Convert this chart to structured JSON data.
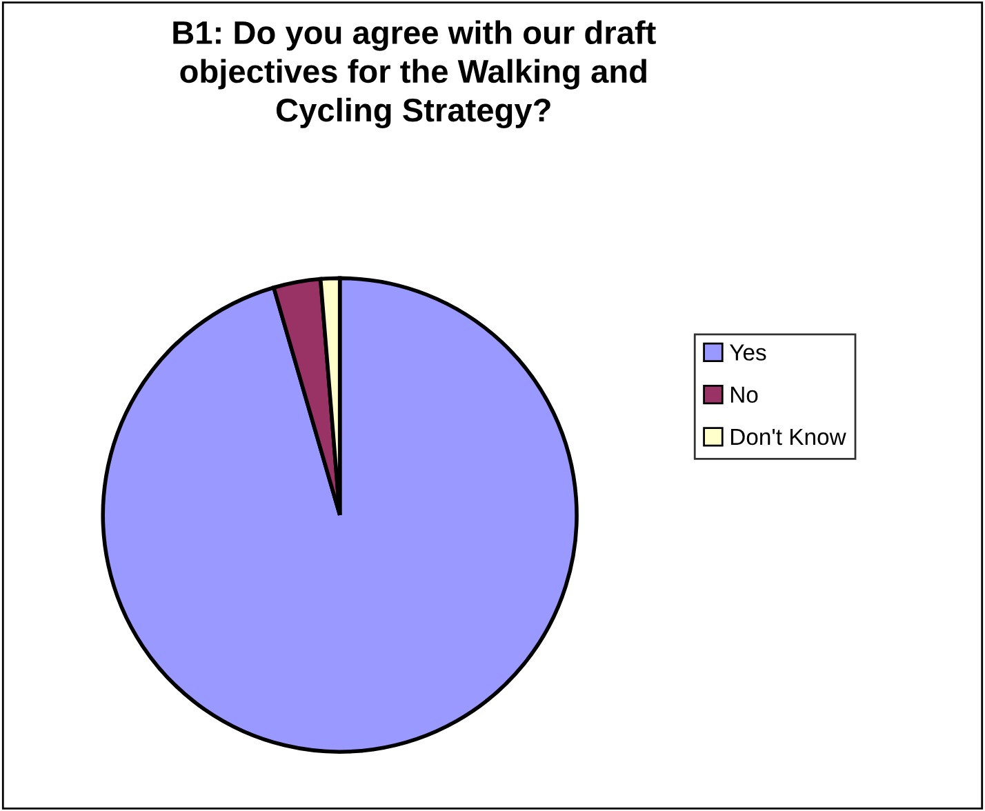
{
  "chart_data": {
    "type": "pie",
    "title": "B1: Do you agree with our draft\nobjectives for the Walking and\nCycling Strategy?",
    "categories": [
      "Yes",
      "No",
      "Don't Know"
    ],
    "values": [
      95.5,
      3.2,
      1.3
    ],
    "colors": [
      "#9999ff",
      "#993366",
      "#ffffcc"
    ],
    "legend": "right"
  }
}
